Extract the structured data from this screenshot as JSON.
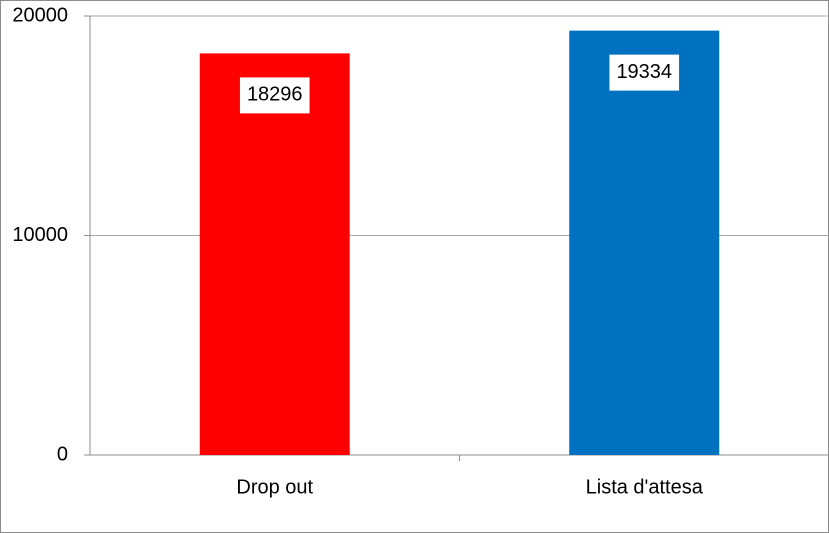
{
  "chart_data": {
    "type": "bar",
    "categories": [
      "Drop out",
      "Lista d'attesa"
    ],
    "values": [
      18296,
      19334
    ],
    "colors": [
      "#ff0000",
      "#0070c0"
    ],
    "ylim": [
      0,
      20000
    ],
    "yticks": [
      0,
      10000,
      20000
    ],
    "grid": true
  }
}
